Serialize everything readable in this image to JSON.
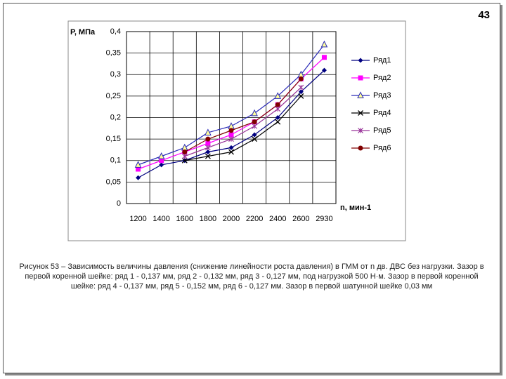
{
  "page_number": "43",
  "caption": "Рисунок 53 – Зависимость величины давления (снижение линейности роста давления) в ГММ от n дв. ДВС без нагрузки. Зазор в первой коренной шейке: ряд 1 - 0,137 мм, ряд 2 - 0,132 мм, ряд 3 - 0,127 мм, под нагрузкой 500 Н·м. Зазор в первой коренной шейке: ряд 4 - 0,137 мм, ряд 5 - 0,152 мм, ряд 6 - 0,127 мм. Зазор в первой шатунной шейке 0,03 мм",
  "chart_data": {
    "type": "line",
    "y_label": "Р, МПа",
    "x_label": "n, мин-1",
    "categories": [
      "1200",
      "1400",
      "1600",
      "1800",
      "2000",
      "2200",
      "2400",
      "2600",
      "2930"
    ],
    "ylim": [
      0,
      0.4
    ],
    "yticks": [
      0,
      {
        "value": 0.05,
        "label": "0,05"
      },
      {
        "value": 0.1,
        "label": "0,1"
      },
      {
        "value": 0.15,
        "label": "0,15"
      },
      {
        "value": 0.2,
        "label": "0,2"
      },
      {
        "value": 0.25,
        "label": "0,25"
      },
      {
        "value": 0.3,
        "label": "0,3"
      },
      {
        "value": 0.35,
        "label": "0,35"
      },
      {
        "value": 0.4,
        "label": "0,4"
      }
    ],
    "grid": true,
    "legend": "right",
    "series": [
      {
        "name": "Ряд1",
        "color": "#000080",
        "marker": "diamond",
        "values": [
          0.06,
          0.09,
          0.1,
          0.12,
          0.13,
          0.16,
          0.2,
          0.26,
          0.31
        ]
      },
      {
        "name": "Ряд2",
        "color": "#ff00ff",
        "marker": "square",
        "values": [
          0.08,
          0.1,
          0.12,
          0.14,
          0.16,
          0.19,
          0.23,
          0.29,
          0.34
        ]
      },
      {
        "name": "Ряд3",
        "color": "#2a2ab8",
        "marker": "triangle",
        "values": [
          0.09,
          0.11,
          0.13,
          0.165,
          0.18,
          0.21,
          0.25,
          0.3,
          0.37
        ]
      },
      {
        "name": "Ряд4",
        "color": "#000000",
        "marker": "x",
        "values": [
          null,
          null,
          0.1,
          0.11,
          0.12,
          0.15,
          0.19,
          0.25,
          null
        ]
      },
      {
        "name": "Ряд5",
        "color": "#993399",
        "marker": "star",
        "values": [
          null,
          null,
          0.11,
          0.13,
          0.15,
          0.18,
          0.22,
          0.27,
          null
        ]
      },
      {
        "name": "Ряд6",
        "color": "#800000",
        "marker": "circle",
        "values": [
          null,
          null,
          0.12,
          0.15,
          0.17,
          0.19,
          0.23,
          0.29,
          null
        ]
      }
    ]
  }
}
